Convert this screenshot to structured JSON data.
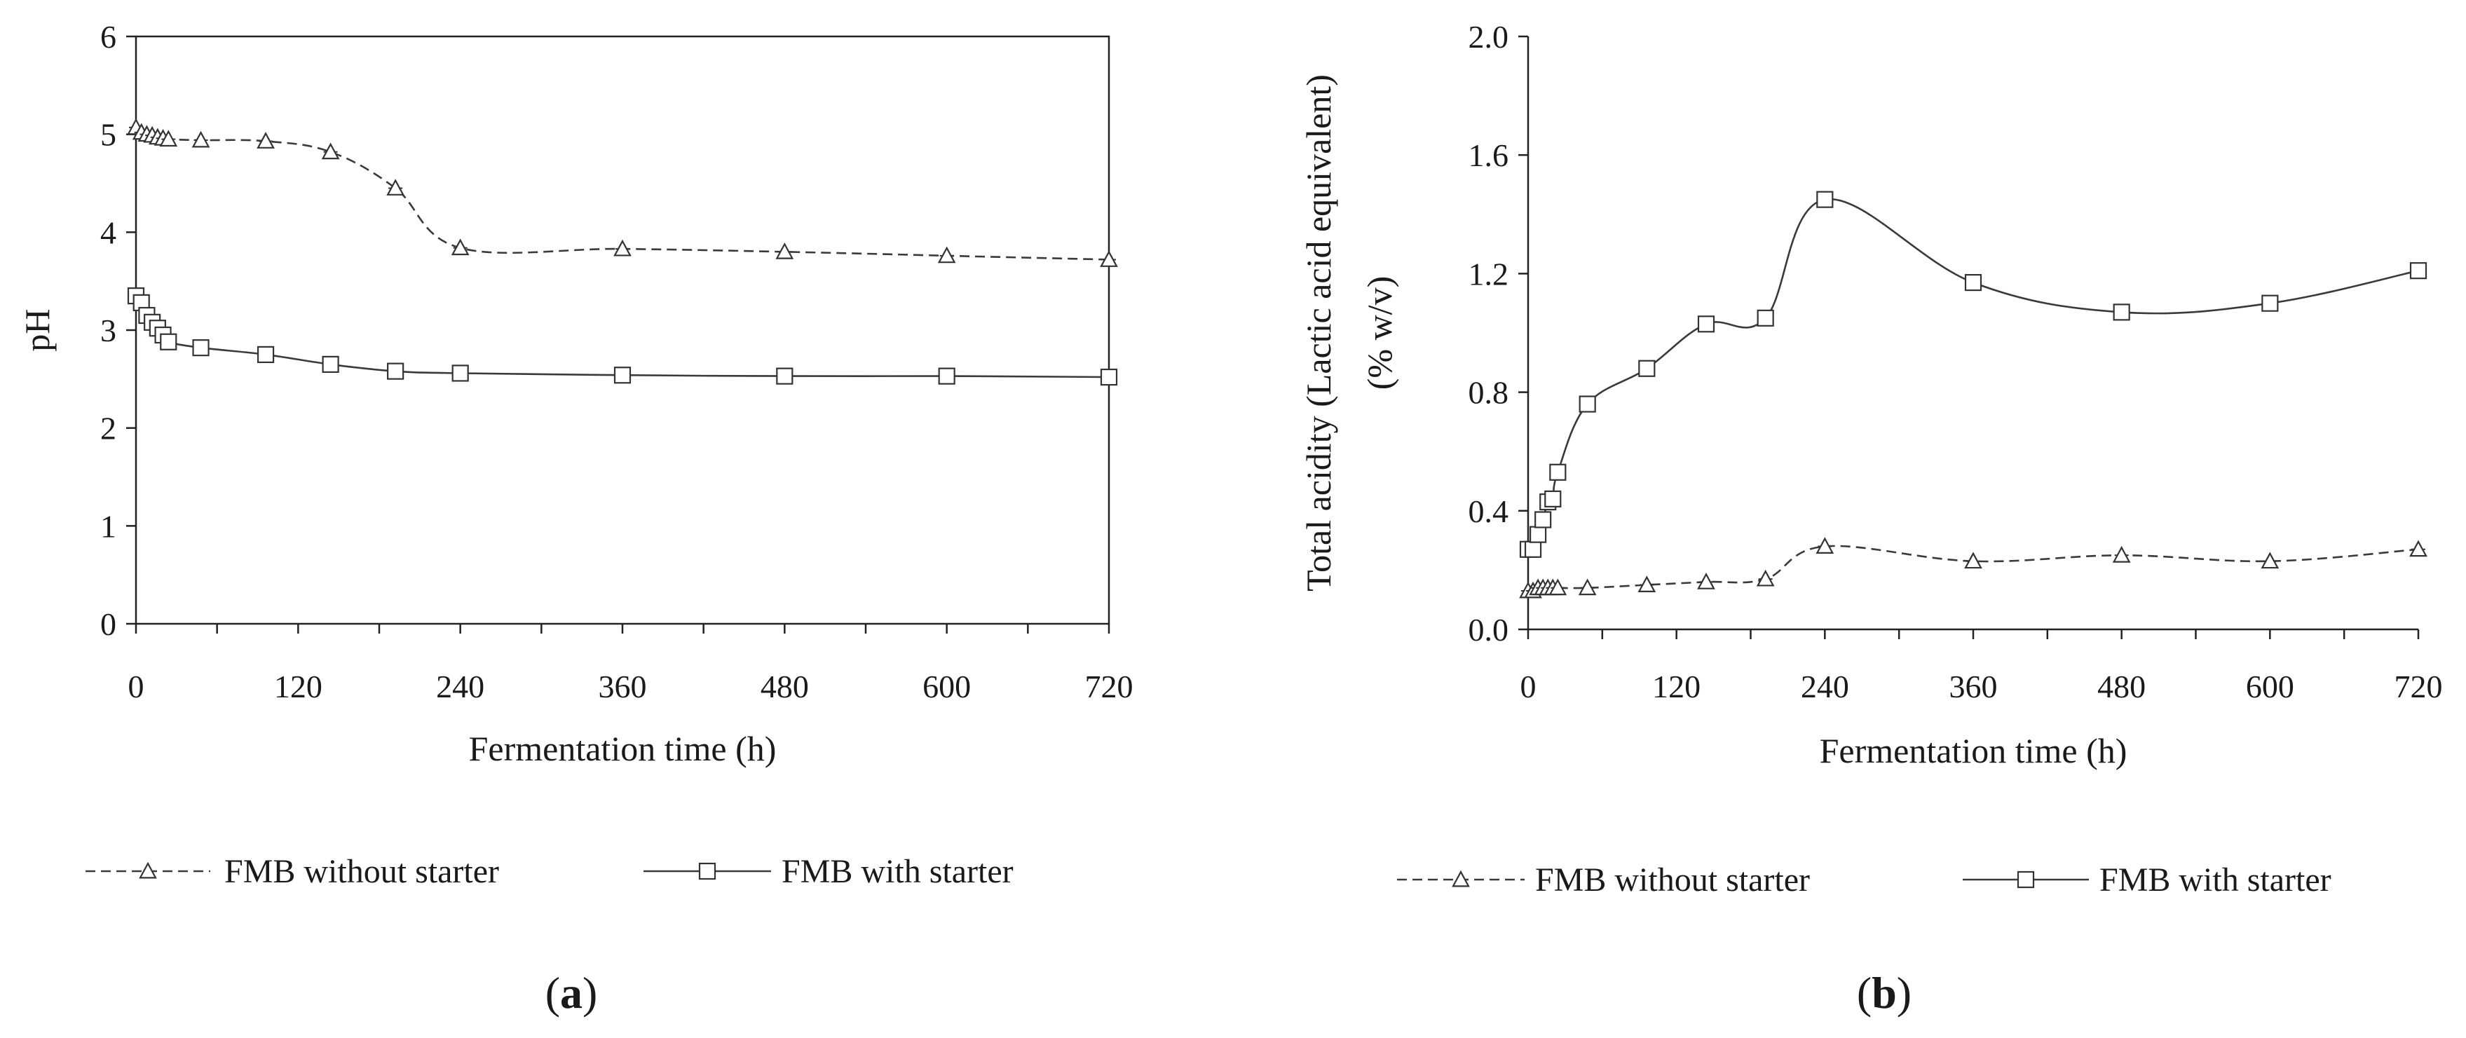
{
  "chart_data": [
    {
      "type": "line",
      "panel_label": "(a)",
      "xlabel": "Fermentation time (h)",
      "ylabel": "pH",
      "xlim": [
        0,
        720
      ],
      "ylim": [
        0,
        6
      ],
      "xticks": [
        "0",
        "120",
        "240",
        "360",
        "480",
        "600",
        "720"
      ],
      "yticks": [
        "0",
        "1",
        "2",
        "3",
        "4",
        "5",
        "6"
      ],
      "grid": false,
      "legend_position": "bottom",
      "series": [
        {
          "name": "FMB without starter",
          "marker": "triangle",
          "line_style": "dashed",
          "x": [
            0,
            4,
            8,
            12,
            16,
            20,
            24,
            48,
            96,
            144,
            192,
            240,
            360,
            480,
            600,
            720
          ],
          "y": [
            5.07,
            5.02,
            5.0,
            4.99,
            4.97,
            4.96,
            4.95,
            4.94,
            4.93,
            4.82,
            4.45,
            3.84,
            3.83,
            3.8,
            3.76,
            3.72
          ]
        },
        {
          "name": "FMB with starter",
          "marker": "square",
          "line_style": "solid",
          "x": [
            0,
            4,
            8,
            12,
            16,
            20,
            24,
            48,
            96,
            144,
            192,
            240,
            360,
            480,
            600,
            720
          ],
          "y": [
            3.35,
            3.28,
            3.15,
            3.08,
            3.02,
            2.95,
            2.88,
            2.82,
            2.75,
            2.65,
            2.58,
            2.56,
            2.54,
            2.53,
            2.53,
            2.52
          ]
        }
      ]
    },
    {
      "type": "line",
      "panel_label": "(b)",
      "xlabel": "Fermentation time (h)",
      "ylabel": "Total acidity (Lactic acid equivalent)",
      "ylabel2": "(% w/v)",
      "xlim": [
        0,
        720
      ],
      "ylim": [
        0,
        2.0
      ],
      "xticks": [
        "0",
        "120",
        "240",
        "360",
        "480",
        "600",
        "720"
      ],
      "yticks": [
        "0.0",
        "0.4",
        "0.8",
        "1.2",
        "1.6",
        "2.0"
      ],
      "grid": false,
      "legend_position": "bottom",
      "series": [
        {
          "name": "FMB without starter",
          "marker": "triangle",
          "line_style": "dashed",
          "x": [
            0,
            4,
            8,
            12,
            16,
            20,
            24,
            48,
            96,
            144,
            192,
            240,
            360,
            480,
            600,
            720
          ],
          "y": [
            0.13,
            0.13,
            0.14,
            0.14,
            0.14,
            0.14,
            0.14,
            0.14,
            0.15,
            0.16,
            0.17,
            0.28,
            0.23,
            0.25,
            0.23,
            0.27
          ]
        },
        {
          "name": "FMB with starter",
          "marker": "square",
          "line_style": "solid",
          "x": [
            0,
            4,
            8,
            12,
            16,
            20,
            24,
            48,
            96,
            144,
            192,
            240,
            360,
            480,
            600,
            720
          ],
          "y": [
            0.27,
            0.27,
            0.32,
            0.37,
            0.43,
            0.44,
            0.53,
            0.76,
            0.88,
            1.03,
            1.05,
            1.45,
            1.17,
            1.07,
            1.1,
            1.21
          ]
        }
      ]
    }
  ]
}
